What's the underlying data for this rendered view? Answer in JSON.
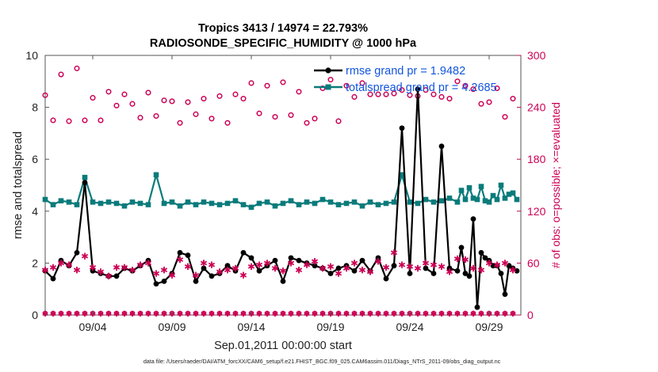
{
  "chart_data": {
    "type": "line",
    "title_line1": "Tropics 3413 / 14974 = 22.793%",
    "title_line2": "RADIOSONDE_SPECIFIC_HUMIDITY @ 1000 hPa",
    "xlabel": "Sep.01,2011 00:00:00 start",
    "ylabel_left": "rmse and totalspread",
    "ylabel_right": "# of obs: o=possible; ×=evaluated",
    "footer": "data file: /Users/raeder/DAI/ATM_forcXX/CAM6_setup/f.e21.FHIST_BGC.f09_025.CAM6assim.011/Diags_NTrS_2011-09/obs_diag_output.nc",
    "xlim": [
      1.0,
      31.0
    ],
    "ylim_left": [
      0,
      10
    ],
    "ylim_right": [
      0,
      300
    ],
    "x_ticks": [
      4,
      9,
      14,
      19,
      24,
      29
    ],
    "x_tick_labels": [
      "09/04",
      "09/09",
      "09/14",
      "09/19",
      "09/24",
      "09/29"
    ],
    "y_ticks_left": [
      0,
      2,
      4,
      6,
      8,
      10
    ],
    "y_tick_labels_left": [
      "0",
      "2",
      "4",
      "6",
      "8",
      "10"
    ],
    "y_ticks_right": [
      0,
      60,
      120,
      180,
      240,
      300
    ],
    "y_tick_labels_right": [
      "0",
      "60",
      "120",
      "180",
      "240",
      "300"
    ],
    "legend": [
      {
        "label": "rmse grand pr = 1.9482",
        "color": "#000000",
        "marker": "filled-circle"
      },
      {
        "label": "totalspread grand pr = 4.2685",
        "color": "#0a7b7b",
        "marker": "filled-square"
      }
    ],
    "colors": {
      "rmse": "#000000",
      "spread": "#0a7b7b",
      "obs": "#cc0055"
    },
    "series": [
      {
        "name": "rmse",
        "x": [
          1.0,
          1.5,
          2.0,
          2.5,
          3.0,
          3.5,
          4.0,
          4.5,
          5.0,
          5.5,
          6.0,
          6.5,
          7.0,
          7.5,
          8.0,
          8.5,
          9.0,
          9.5,
          10.0,
          10.5,
          11.0,
          11.5,
          12.0,
          12.5,
          13.0,
          13.5,
          14.0,
          14.5,
          15.0,
          15.5,
          16.0,
          16.5,
          17.0,
          17.5,
          18.0,
          18.5,
          19.0,
          19.5,
          20.0,
          20.5,
          21.0,
          21.5,
          22.0,
          22.5,
          23.0,
          23.5,
          24.0,
          24.5,
          25.0,
          25.5,
          26.0,
          26.5,
          27.0,
          27.25,
          27.5,
          27.75,
          28.0,
          28.25,
          28.5,
          28.75,
          29.0,
          29.25,
          29.5,
          29.75,
          30.0,
          30.25,
          30.5,
          30.75
        ],
        "values": [
          1.7,
          1.4,
          2.1,
          1.9,
          2.4,
          5.1,
          1.7,
          1.6,
          1.5,
          1.5,
          1.8,
          1.7,
          1.9,
          2.1,
          1.2,
          1.3,
          1.6,
          2.4,
          2.3,
          1.3,
          1.8,
          1.5,
          1.6,
          1.9,
          1.7,
          2.4,
          2.2,
          1.7,
          1.9,
          2.1,
          1.3,
          2.2,
          2.1,
          2.0,
          1.9,
          1.8,
          1.6,
          1.8,
          1.9,
          1.7,
          2.1,
          1.7,
          2.2,
          1.4,
          1.9,
          7.2,
          1.6,
          8.7,
          1.8,
          1.6,
          6.5,
          1.8,
          1.7,
          2.6,
          1.6,
          1.5,
          3.7,
          0.3,
          2.4,
          2.2,
          2.1,
          1.9,
          1.9,
          1.6,
          0.8,
          1.9,
          1.8,
          1.7
        ]
      },
      {
        "name": "totalspread",
        "x": [
          1.0,
          1.5,
          2.0,
          2.5,
          3.0,
          3.5,
          4.0,
          4.5,
          5.0,
          5.5,
          6.0,
          6.5,
          7.0,
          7.5,
          8.0,
          8.5,
          9.0,
          9.5,
          10.0,
          10.5,
          11.0,
          11.5,
          12.0,
          12.5,
          13.0,
          13.5,
          14.0,
          14.5,
          15.0,
          15.5,
          16.0,
          16.5,
          17.0,
          17.5,
          18.0,
          18.5,
          19.0,
          19.5,
          20.0,
          20.5,
          21.0,
          21.5,
          22.0,
          22.5,
          23.0,
          23.5,
          24.0,
          24.5,
          25.0,
          25.5,
          26.0,
          26.5,
          27.0,
          27.25,
          27.5,
          27.75,
          28.0,
          28.25,
          28.5,
          28.75,
          29.0,
          29.25,
          29.5,
          29.75,
          30.0,
          30.25,
          30.5,
          30.75
        ],
        "values": [
          4.45,
          4.25,
          4.4,
          4.35,
          4.25,
          5.3,
          4.35,
          4.3,
          4.35,
          4.3,
          4.2,
          4.35,
          4.3,
          4.25,
          5.4,
          4.3,
          4.35,
          4.2,
          4.35,
          4.25,
          4.35,
          4.3,
          4.25,
          4.3,
          4.4,
          4.25,
          4.15,
          4.3,
          4.35,
          4.2,
          4.3,
          4.4,
          4.25,
          4.35,
          4.3,
          4.45,
          4.35,
          4.25,
          4.3,
          4.35,
          4.2,
          4.35,
          4.25,
          4.3,
          4.35,
          5.4,
          4.35,
          4.3,
          4.45,
          4.35,
          4.4,
          4.5,
          4.35,
          4.8,
          4.45,
          4.9,
          4.5,
          4.45,
          4.95,
          4.4,
          4.35,
          4.6,
          4.45,
          5.0,
          4.5,
          4.65,
          4.7,
          4.45
        ]
      },
      {
        "name": "obs possible",
        "x": [
          1.0,
          1.5,
          2.0,
          2.5,
          3.0,
          3.5,
          4.0,
          4.5,
          5.0,
          5.5,
          6.0,
          6.5,
          7.0,
          7.5,
          8.0,
          8.5,
          9.0,
          9.5,
          10.0,
          10.5,
          11.0,
          11.5,
          12.0,
          12.5,
          13.0,
          13.5,
          14.0,
          14.5,
          15.0,
          15.5,
          16.0,
          16.5,
          17.0,
          17.5,
          18.0,
          18.5,
          19.0,
          19.5,
          20.0,
          20.5,
          21.0,
          21.5,
          22.0,
          22.5,
          23.0,
          23.5,
          24.0,
          24.5,
          25.0,
          25.5,
          26.0,
          26.5,
          27.0,
          27.5,
          28.0,
          28.5,
          29.0,
          29.5,
          30.0,
          30.5
        ],
        "values": [
          254,
          225,
          278,
          224,
          285,
          225,
          251,
          225,
          258,
          242,
          255,
          244,
          228,
          257,
          230,
          248,
          247,
          222,
          246,
          232,
          250,
          227,
          253,
          222,
          255,
          250,
          268,
          233,
          265,
          229,
          269,
          231,
          258,
          222,
          227,
          262,
          272,
          224,
          265,
          252,
          268,
          255,
          255,
          255,
          256,
          260,
          254,
          253,
          260,
          255,
          252,
          250,
          270,
          265,
          261,
          244,
          246,
          262,
          229,
          250
        ]
      },
      {
        "name": "obs evaluated",
        "x": [
          1.0,
          1.5,
          2.0,
          2.5,
          3.0,
          3.5,
          4.0,
          4.5,
          5.0,
          5.5,
          6.0,
          6.5,
          7.0,
          7.5,
          8.0,
          8.5,
          9.0,
          9.5,
          10.0,
          10.5,
          11.0,
          11.5,
          12.0,
          12.5,
          13.0,
          13.5,
          14.0,
          14.5,
          15.0,
          15.5,
          16.0,
          16.5,
          17.0,
          17.5,
          18.0,
          18.5,
          19.0,
          19.5,
          20.0,
          20.5,
          21.0,
          21.5,
          22.0,
          22.5,
          23.0,
          23.5,
          24.0,
          24.5,
          25.0,
          25.5,
          26.0,
          26.5,
          27.0,
          27.5,
          28.0,
          28.5,
          29.0,
          29.5,
          30.0,
          30.5
        ],
        "values": [
          52,
          55,
          60,
          58,
          52,
          68,
          55,
          50,
          45,
          55,
          55,
          52,
          58,
          60,
          48,
          52,
          46,
          64,
          56,
          46,
          60,
          58,
          50,
          52,
          54,
          46,
          56,
          58,
          60,
          54,
          51,
          60,
          52,
          58,
          62,
          54,
          56,
          48,
          54,
          60,
          52,
          50,
          62,
          55,
          72,
          58,
          56,
          54,
          60,
          58,
          56,
          50,
          65,
          64,
          54,
          52,
          60,
          58,
          60,
          52
        ]
      }
    ]
  }
}
